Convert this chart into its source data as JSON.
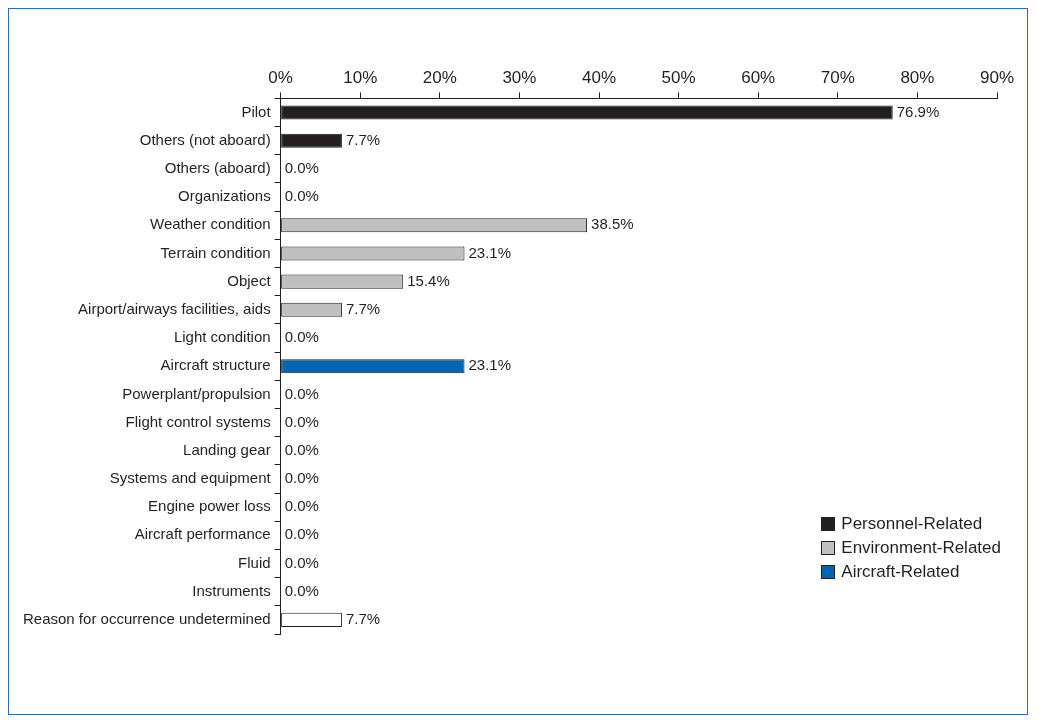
{
  "chart_data": {
    "type": "bar",
    "orientation": "horizontal",
    "stacked": true,
    "categories": [
      "Pilot",
      "Others (not aboard)",
      "Others (aboard)",
      "Organizations",
      "Weather condition",
      "Terrain condition",
      "Object",
      "Airport/airways facilities, aids",
      "Light condition",
      "Aircraft structure",
      "Powerplant/propulsion",
      "Flight control systems",
      "Landing gear",
      "Systems and equipment",
      "Engine power loss",
      "Aircraft performance",
      "Fluid",
      "Instruments",
      "Reason for occurrence undetermined"
    ],
    "series": [
      {
        "name": "Personnel-Related",
        "color": "#231f20",
        "values": [
          76.9,
          7.7,
          0.0,
          0.0,
          null,
          null,
          null,
          null,
          null,
          null,
          null,
          null,
          null,
          null,
          null,
          null,
          null,
          null,
          null
        ],
        "value_labels": [
          "76.9%",
          "7.7%",
          "0.0%",
          "0.0%",
          null,
          null,
          null,
          null,
          null,
          null,
          null,
          null,
          null,
          null,
          null,
          null,
          null,
          null,
          null
        ]
      },
      {
        "name": "Environment-Related",
        "color": "#c0c0c0",
        "values": [
          null,
          null,
          null,
          null,
          38.5,
          23.1,
          15.4,
          7.7,
          0.0,
          null,
          null,
          null,
          null,
          null,
          null,
          null,
          null,
          null,
          null
        ],
        "value_labels": [
          null,
          null,
          null,
          null,
          "38.5%",
          "23.1%",
          "15.4%",
          "7.7%",
          "0.0%",
          null,
          null,
          null,
          null,
          null,
          null,
          null,
          null,
          null,
          null
        ]
      },
      {
        "name": "Aircraft-Related",
        "color": "#0066b3",
        "values": [
          null,
          null,
          null,
          null,
          null,
          null,
          null,
          null,
          null,
          23.1,
          0.0,
          0.0,
          0.0,
          0.0,
          0.0,
          0.0,
          0.0,
          0.0,
          null
        ],
        "value_labels": [
          null,
          null,
          null,
          null,
          null,
          null,
          null,
          null,
          null,
          "23.1%",
          "0.0%",
          "0.0%",
          "0.0%",
          "0.0%",
          "0.0%",
          "0.0%",
          "0.0%",
          "0.0%",
          null
        ]
      },
      {
        "color": "#ffffff",
        "values": [
          null,
          null,
          null,
          null,
          null,
          null,
          null,
          null,
          null,
          null,
          null,
          null,
          null,
          null,
          null,
          null,
          null,
          null,
          7.7
        ],
        "value_labels": [
          null,
          null,
          null,
          null,
          null,
          null,
          null,
          null,
          null,
          null,
          null,
          null,
          null,
          null,
          null,
          null,
          null,
          null,
          "7.7%"
        ]
      }
    ],
    "xlim": [
      0,
      90
    ],
    "xticks": [
      {
        "value": 0,
        "label": "0%"
      },
      {
        "value": 10,
        "label": "10%"
      },
      {
        "value": 20,
        "label": "20%"
      },
      {
        "value": 30,
        "label": "30%"
      },
      {
        "value": 40,
        "label": "40%"
      },
      {
        "value": 50,
        "label": "50%"
      },
      {
        "value": 60,
        "label": "60%"
      },
      {
        "value": 70,
        "label": "70%"
      },
      {
        "value": 80,
        "label": "80%"
      },
      {
        "value": 90,
        "label": "90%"
      }
    ],
    "grid": false,
    "legend": "bottom right"
  }
}
